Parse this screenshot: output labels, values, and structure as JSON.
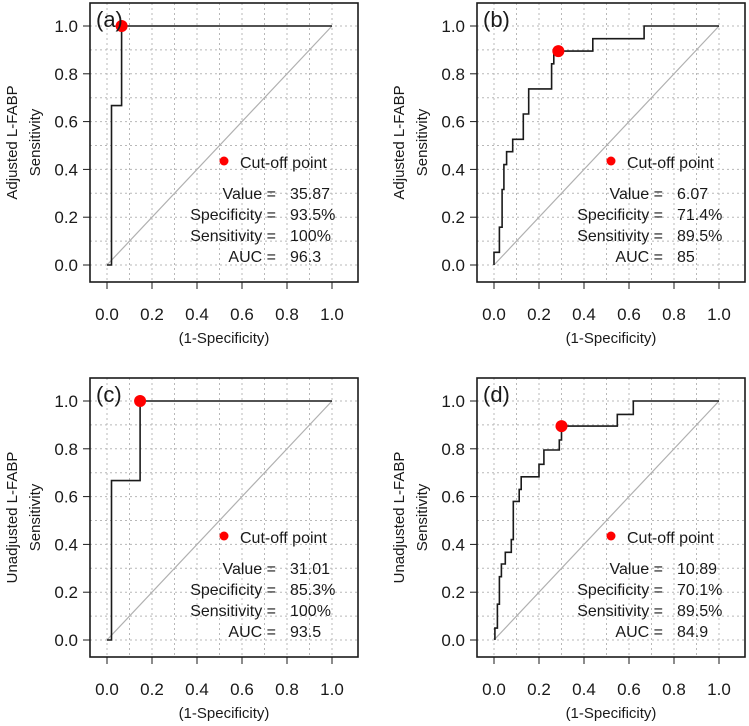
{
  "chart_data": [
    {
      "type": "line",
      "panel_label": "(a)",
      "xlabel": "(1-Specificity)",
      "ylabel": [
        "Adjusted L-FABP",
        "Sensitivity"
      ],
      "xlim": [
        0,
        1
      ],
      "ylim": [
        0,
        1
      ],
      "xticks": [
        "0.0",
        "0.2",
        "0.4",
        "0.6",
        "0.8",
        "1.0"
      ],
      "yticks": [
        "0.0",
        "0.2",
        "0.4",
        "0.6",
        "0.8",
        "1.0"
      ],
      "grid": true,
      "series": [
        {
          "name": "ROC",
          "points": [
            [
              0,
              0
            ],
            [
              0.02,
              0
            ],
            [
              0.02,
              0.667
            ],
            [
              0.065,
              0.667
            ],
            [
              0.065,
              1
            ],
            [
              1,
              1
            ]
          ]
        }
      ],
      "cutoff_point": [
        0.065,
        1.0
      ],
      "legend": "Cut-off point",
      "stats": [
        {
          "label": "Value =",
          "value": "35.87"
        },
        {
          "label": "Specificity =",
          "value": "93.5%"
        },
        {
          "label": "Sensitivity =",
          "value": "100%"
        },
        {
          "label": "AUC =",
          "value": "96.3"
        }
      ]
    },
    {
      "type": "line",
      "panel_label": "(b)",
      "xlabel": "(1-Specificity)",
      "ylabel": [
        "Adjusted L-FABP",
        "Sensitivity"
      ],
      "xlim": [
        0,
        1
      ],
      "ylim": [
        0,
        1
      ],
      "xticks": [
        "0.0",
        "0.2",
        "0.4",
        "0.6",
        "0.8",
        "1.0"
      ],
      "yticks": [
        "0.0",
        "0.2",
        "0.4",
        "0.6",
        "0.8",
        "1.0"
      ],
      "grid": true,
      "series": [
        {
          "name": "ROC",
          "points": [
            [
              0,
              0
            ],
            [
              0,
              0.053
            ],
            [
              0.024,
              0.053
            ],
            [
              0.024,
              0.158
            ],
            [
              0.036,
              0.158
            ],
            [
              0.036,
              0.316
            ],
            [
              0.044,
              0.316
            ],
            [
              0.044,
              0.42
            ],
            [
              0.056,
              0.42
            ],
            [
              0.056,
              0.474
            ],
            [
              0.083,
              0.474
            ],
            [
              0.083,
              0.526
            ],
            [
              0.13,
              0.526
            ],
            [
              0.13,
              0.632
            ],
            [
              0.154,
              0.632
            ],
            [
              0.154,
              0.737
            ],
            [
              0.256,
              0.737
            ],
            [
              0.256,
              0.842
            ],
            [
              0.266,
              0.842
            ],
            [
              0.266,
              0.895
            ],
            [
              0.439,
              0.895
            ],
            [
              0.439,
              0.947
            ],
            [
              0.667,
              0.947
            ],
            [
              0.667,
              1
            ],
            [
              1,
              1
            ]
          ]
        }
      ],
      "cutoff_point": [
        0.286,
        0.895
      ],
      "legend": "Cut-off point",
      "stats": [
        {
          "label": "Value =",
          "value": "6.07"
        },
        {
          "label": "Specificity =",
          "value": "71.4%"
        },
        {
          "label": "Sensitivity =",
          "value": "89.5%"
        },
        {
          "label": "AUC =",
          "value": "85"
        }
      ]
    },
    {
      "type": "line",
      "panel_label": "(c)",
      "xlabel": "(1-Specificity)",
      "ylabel": [
        "Unadjusted L-FABP",
        "Sensitivity"
      ],
      "xlim": [
        0,
        1
      ],
      "ylim": [
        0,
        1
      ],
      "xticks": [
        "0.0",
        "0.2",
        "0.4",
        "0.6",
        "0.8",
        "1.0"
      ],
      "yticks": [
        "0.0",
        "0.2",
        "0.4",
        "0.6",
        "0.8",
        "1.0"
      ],
      "grid": true,
      "series": [
        {
          "name": "ROC",
          "points": [
            [
              0,
              0
            ],
            [
              0.02,
              0
            ],
            [
              0.02,
              0.667
            ],
            [
              0.147,
              0.667
            ],
            [
              0.147,
              1
            ],
            [
              1,
              1
            ]
          ]
        }
      ],
      "cutoff_point": [
        0.147,
        1.0
      ],
      "legend": "Cut-off point",
      "stats": [
        {
          "label": "Value =",
          "value": "31.01"
        },
        {
          "label": "Specificity =",
          "value": "85.3%"
        },
        {
          "label": "Sensitivity =",
          "value": "100%"
        },
        {
          "label": "AUC =",
          "value": "93.5"
        }
      ]
    },
    {
      "type": "line",
      "panel_label": "(d)",
      "xlabel": "(1-Specificity)",
      "ylabel": [
        "Unadjusted L-FABP",
        "Sensitivity"
      ],
      "xlim": [
        0,
        1
      ],
      "ylim": [
        0,
        1
      ],
      "xticks": [
        "0.0",
        "0.2",
        "0.4",
        "0.6",
        "0.8",
        "1.0"
      ],
      "yticks": [
        "0.0",
        "0.2",
        "0.4",
        "0.6",
        "0.8",
        "1.0"
      ],
      "grid": true,
      "series": [
        {
          "name": "ROC",
          "points": [
            [
              0.004,
              0
            ],
            [
              0.004,
              0.05
            ],
            [
              0.015,
              0.05
            ],
            [
              0.015,
              0.15
            ],
            [
              0.024,
              0.15
            ],
            [
              0.024,
              0.265
            ],
            [
              0.033,
              0.265
            ],
            [
              0.033,
              0.318
            ],
            [
              0.05,
              0.318
            ],
            [
              0.05,
              0.367
            ],
            [
              0.077,
              0.367
            ],
            [
              0.077,
              0.42
            ],
            [
              0.086,
              0.42
            ],
            [
              0.086,
              0.58
            ],
            [
              0.112,
              0.58
            ],
            [
              0.112,
              0.63
            ],
            [
              0.121,
              0.63
            ],
            [
              0.121,
              0.683
            ],
            [
              0.2,
              0.683
            ],
            [
              0.2,
              0.735
            ],
            [
              0.222,
              0.735
            ],
            [
              0.222,
              0.795
            ],
            [
              0.29,
              0.795
            ],
            [
              0.29,
              0.837
            ],
            [
              0.3,
              0.837
            ],
            [
              0.3,
              0.895
            ],
            [
              0.548,
              0.895
            ],
            [
              0.548,
              0.944
            ],
            [
              0.619,
              0.944
            ],
            [
              0.619,
              1
            ],
            [
              1,
              1
            ]
          ]
        }
      ],
      "cutoff_point": [
        0.3,
        0.895
      ],
      "legend": "Cut-off point",
      "stats": [
        {
          "label": "Value =",
          "value": "10.89"
        },
        {
          "label": "Specificity =",
          "value": "70.1%"
        },
        {
          "label": "Sensitivity =",
          "value": "89.5%"
        },
        {
          "label": "AUC =",
          "value": "84.9"
        }
      ]
    }
  ],
  "colors": {
    "curve": "#1a1a1a",
    "diagonal": "#b0b0b0",
    "cutoff": "#ff0000",
    "grid": "#b8b8b8"
  }
}
